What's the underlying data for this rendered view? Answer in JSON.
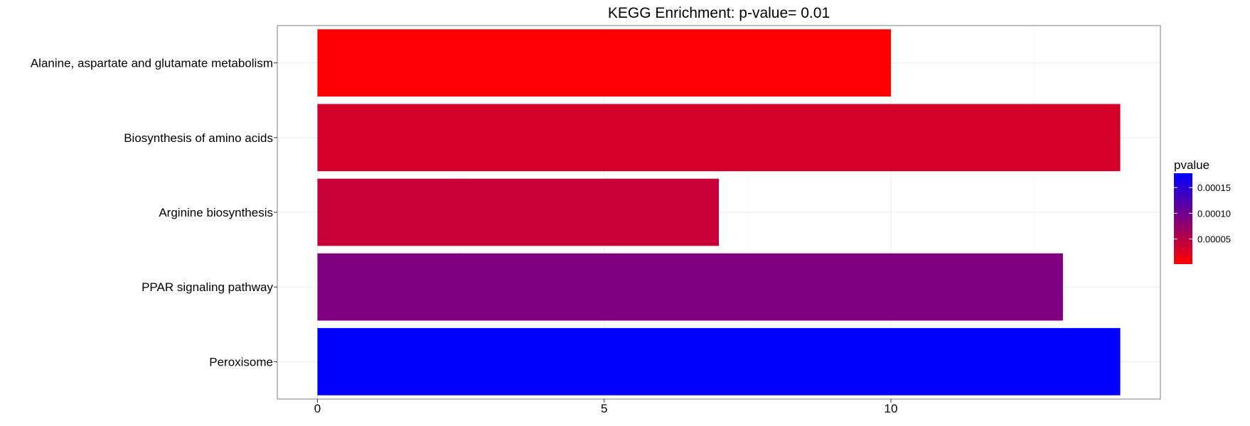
{
  "chart_data": {
    "type": "bar",
    "orientation": "horizontal",
    "title": "KEGG Enrichment: p-value= 0.01",
    "xlabel": "",
    "ylabel": "",
    "categories": [
      "Alanine, aspartate and glutamate metabolism",
      "Biosynthesis of amino acids",
      "Arginine biosynthesis",
      "PPAR signaling pathway",
      "Peroxisome"
    ],
    "values": [
      10,
      14,
      7,
      13,
      14
    ],
    "pvalues": [
      1e-06,
      3e-05,
      4e-05,
      9e-05,
      0.000178
    ],
    "xlim": [
      -0.7,
      14.7
    ],
    "xticks": [
      0,
      5,
      10
    ],
    "grid": true,
    "legend": {
      "title": "pvalue",
      "position": "right",
      "range": [
        1e-06,
        0.000178
      ],
      "ticks": [
        {
          "value": 5e-05,
          "label": "0.00005"
        },
        {
          "value": 0.0001,
          "label": "0.00010"
        },
        {
          "value": 0.00015,
          "label": "0.00015"
        }
      ]
    },
    "colors": {
      "low": "#ff0000",
      "high": "#0000ff",
      "panel_border": "#7f7f7f",
      "grid_major": "#ebebeb",
      "grid_minor": "#f5f5f5"
    }
  }
}
